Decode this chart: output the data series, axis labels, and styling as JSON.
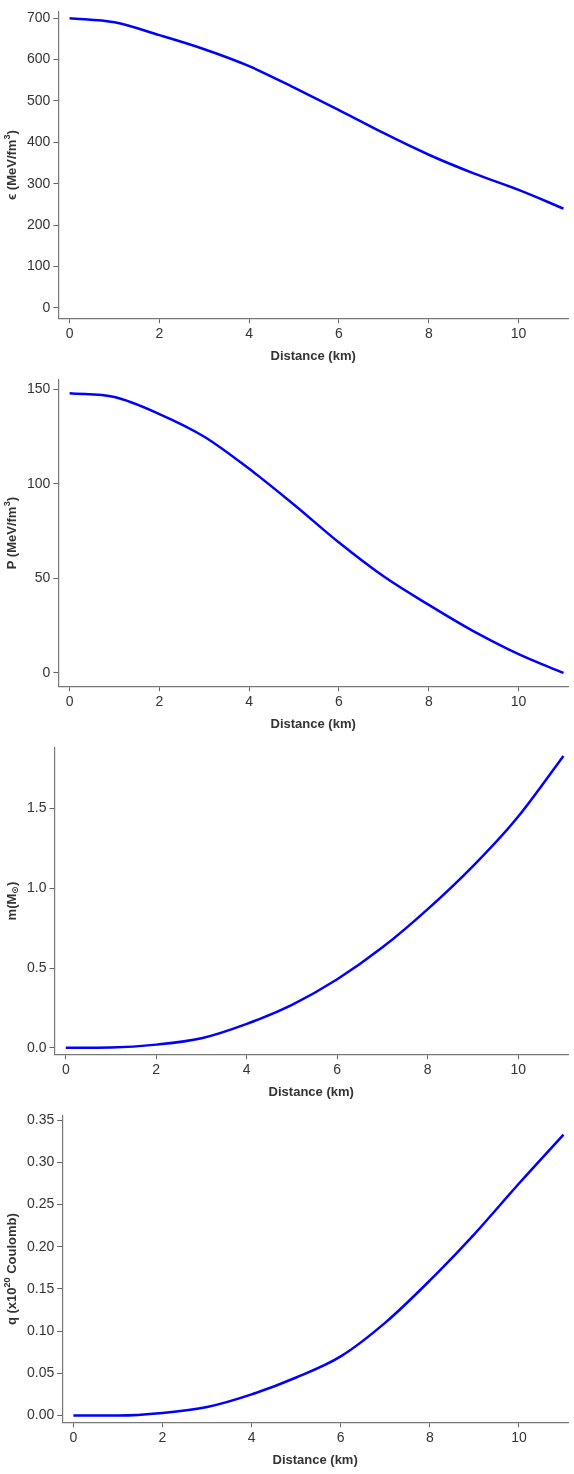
{
  "chart_data": [
    {
      "type": "line",
      "xlabel": "Distance (km)",
      "ylabel": "ϵ (MeV/fm$^{3}$)",
      "x": [
        0,
        1,
        2,
        3,
        4,
        5,
        6,
        7,
        8,
        9,
        10,
        11
      ],
      "series": [
        {
          "color": "#0000ff",
          "values": [
            700,
            690,
            659,
            625,
            584,
            532,
            478,
            422,
            370,
            325,
            285,
            240
          ]
        }
      ],
      "xlim": [
        -0.25,
        11.1
      ],
      "xticks": [
        0,
        2,
        4,
        6,
        8,
        10
      ],
      "ylim": [
        -25,
        715
      ],
      "yticks": [
        0,
        100,
        200,
        300,
        400,
        500,
        600,
        700
      ],
      "grid": false,
      "legend": false,
      "marker": "none",
      "line_style": "solid"
    },
    {
      "type": "line",
      "xlabel": "Distance (km)",
      "ylabel": "P (MeV/fm$^{3}$)",
      "x": [
        0,
        1,
        2,
        3,
        4,
        5,
        6,
        7,
        8,
        9,
        10,
        11
      ],
      "series": [
        {
          "color": "#0000ff",
          "values": [
            148,
            146,
            137,
            125,
            108,
            89,
            69,
            51,
            36,
            22,
            10,
            0
          ]
        }
      ],
      "xlim": [
        -0.25,
        11.1
      ],
      "xticks": [
        0,
        2,
        4,
        6,
        8,
        10
      ],
      "ylim": [
        -7,
        155
      ],
      "yticks": [
        0,
        50,
        100,
        150
      ],
      "grid": false,
      "legend": false,
      "marker": "none",
      "line_style": "solid"
    },
    {
      "type": "line",
      "xlabel": "Distance (km)",
      "ylabel": "m(M$_{⊙}$)",
      "x": [
        0,
        1,
        2,
        3,
        4,
        5,
        6,
        7,
        8,
        9,
        10,
        11
      ],
      "series": [
        {
          "color": "#0000ff",
          "values": [
            0,
            0.002,
            0.02,
            0.06,
            0.15,
            0.27,
            0.43,
            0.63,
            0.87,
            1.14,
            1.45,
            1.83
          ]
        }
      ],
      "xlim": [
        -0.25,
        11.1
      ],
      "xticks": [
        0,
        2,
        4,
        6,
        8,
        10
      ],
      "ylim": [
        -0.04,
        1.88
      ],
      "yticks": [
        {
          "value": 0,
          "label": "0.0"
        },
        {
          "value": 0.5,
          "label": "0.5"
        },
        {
          "value": 1,
          "label": "1.0"
        },
        {
          "value": 1.5,
          "label": "1.5"
        }
      ],
      "grid": false,
      "legend": false,
      "marker": "none",
      "line_style": "solid"
    },
    {
      "type": "line",
      "xlabel": "Distance (km)",
      "ylabel": "q (x10$^{20}$ Coulomb)",
      "x": [
        0,
        1,
        2,
        3,
        4,
        5,
        6,
        7,
        8,
        9,
        10,
        11
      ],
      "series": [
        {
          "color": "#0000ff",
          "values": [
            0,
            0,
            0.003,
            0.01,
            0.025,
            0.045,
            0.07,
            0.11,
            0.16,
            0.215,
            0.275,
            0.333
          ]
        }
      ],
      "xlim": [
        -0.25,
        11.1
      ],
      "xticks": [
        0,
        2,
        4,
        6,
        8,
        10
      ],
      "ylim": [
        -0.008,
        0.355
      ],
      "yticks": [
        {
          "value": 0,
          "label": "0.00"
        },
        {
          "value": 0.05,
          "label": "0.05"
        },
        {
          "value": 0.1,
          "label": "0.10"
        },
        {
          "value": 0.15,
          "label": "0.15"
        },
        {
          "value": 0.2,
          "label": "0.20"
        },
        {
          "value": 0.25,
          "label": "0.25"
        },
        {
          "value": 0.3,
          "label": "0.30"
        },
        {
          "value": 0.35,
          "label": "0.35"
        }
      ],
      "grid": false,
      "legend": false,
      "marker": "none",
      "line_style": "solid"
    }
  ]
}
